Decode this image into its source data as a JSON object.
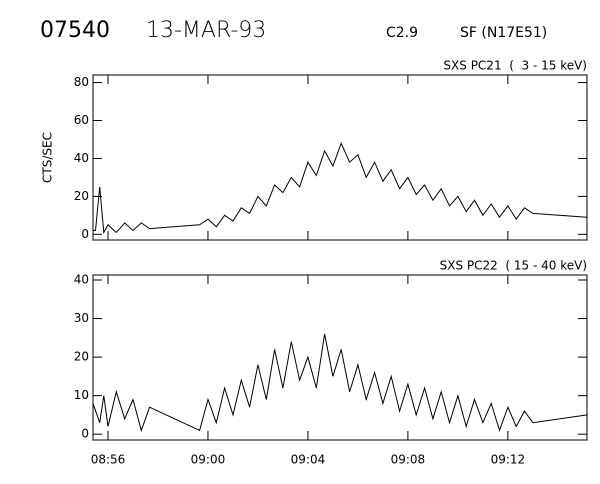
{
  "header": {
    "id": "07540",
    "date": "13-MAR-93",
    "class": "C2.9",
    "flare": "SF (N17E51)"
  },
  "chart_data": [
    {
      "type": "line",
      "title": "SXS PC21  (  3 - 15 keV)",
      "y_label": "CTS/SEC",
      "color": "#000000",
      "xlim": [
        "08:55:24",
        "09:15:10"
      ],
      "xticks": [
        "08:56",
        "09:00",
        "09:04",
        "09:08",
        "09:12"
      ],
      "ylim": [
        -3,
        84
      ],
      "yticks": [
        0,
        20,
        40,
        60,
        80
      ],
      "x": [
        "08:55:24",
        "08:55:30",
        "08:55:40",
        "08:55:50",
        "08:56:00",
        "08:56:20",
        "08:56:40",
        "08:57:00",
        "08:57:20",
        "08:57:40",
        "08:59:40",
        "09:00:00",
        "09:00:20",
        "09:00:40",
        "09:01:00",
        "09:01:20",
        "09:01:40",
        "09:02:00",
        "09:02:20",
        "09:02:40",
        "09:03:00",
        "09:03:20",
        "09:03:40",
        "09:04:00",
        "09:04:20",
        "09:04:40",
        "09:05:00",
        "09:05:20",
        "09:05:40",
        "09:06:00",
        "09:06:20",
        "09:06:40",
        "09:07:00",
        "09:07:20",
        "09:07:40",
        "09:08:00",
        "09:08:20",
        "09:08:40",
        "09:09:00",
        "09:09:20",
        "09:09:40",
        "09:10:00",
        "09:10:20",
        "09:10:40",
        "09:11:00",
        "09:11:20",
        "09:11:40",
        "09:12:00",
        "09:12:20",
        "09:12:40",
        "09:13:00",
        "09:15:10"
      ],
      "values": [
        2,
        2,
        25,
        1,
        5,
        1,
        6,
        2,
        6,
        3,
        5,
        8,
        4,
        10,
        7,
        14,
        11,
        20,
        15,
        26,
        22,
        30,
        25,
        38,
        31,
        44,
        36,
        48,
        38,
        42,
        30,
        38,
        28,
        34,
        24,
        30,
        21,
        26,
        18,
        24,
        15,
        20,
        12,
        18,
        10,
        16,
        9,
        15,
        8,
        14,
        11,
        9
      ]
    },
    {
      "type": "line",
      "title": "SXS PC22  ( 15 - 40 keV)",
      "color": "#000000",
      "xlim": [
        "08:55:24",
        "09:15:10"
      ],
      "xticks": [
        "08:56",
        "09:00",
        "09:04",
        "09:08",
        "09:12"
      ],
      "ylim": [
        -1.5,
        41.3
      ],
      "yticks": [
        0,
        10,
        20,
        30,
        40
      ],
      "x": [
        "08:55:24",
        "08:55:40",
        "08:55:50",
        "08:56:00",
        "08:56:20",
        "08:56:40",
        "08:57:00",
        "08:57:20",
        "08:57:40",
        "08:59:40",
        "09:00:00",
        "09:00:20",
        "09:00:40",
        "09:01:00",
        "09:01:20",
        "09:01:40",
        "09:02:00",
        "09:02:20",
        "09:02:40",
        "09:03:00",
        "09:03:20",
        "09:03:40",
        "09:04:00",
        "09:04:20",
        "09:04:40",
        "09:05:00",
        "09:05:20",
        "09:05:40",
        "09:06:00",
        "09:06:20",
        "09:06:40",
        "09:07:00",
        "09:07:20",
        "09:07:40",
        "09:08:00",
        "09:08:20",
        "09:08:40",
        "09:09:00",
        "09:09:20",
        "09:09:40",
        "09:10:00",
        "09:10:20",
        "09:10:40",
        "09:11:00",
        "09:11:20",
        "09:11:40",
        "09:12:00",
        "09:12:20",
        "09:12:40",
        "09:13:00",
        "09:15:10"
      ],
      "values": [
        8,
        3,
        10,
        2,
        11,
        4,
        9,
        1,
        7,
        1,
        9,
        3,
        12,
        5,
        14,
        7,
        18,
        9,
        22,
        12,
        24,
        14,
        20,
        12,
        26,
        15,
        22,
        11,
        18,
        9,
        16,
        8,
        15,
        6,
        13,
        5,
        12,
        4,
        11,
        3,
        10,
        2,
        9,
        3,
        8,
        1,
        7,
        2,
        6,
        3,
        5
      ]
    }
  ]
}
